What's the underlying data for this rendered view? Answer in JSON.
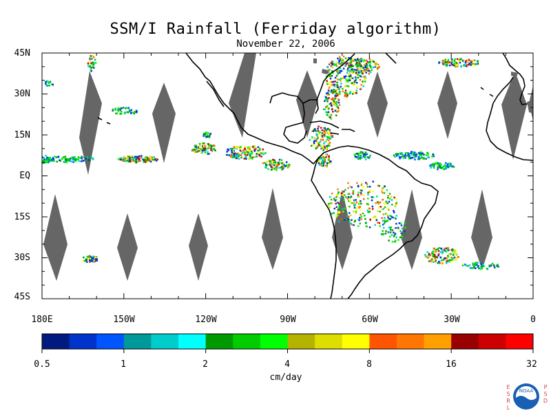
{
  "title": "SSM/I Rainfall (Ferriday algorithm)",
  "date": "November 22, 2006",
  "lat_labels": [
    "45N",
    "30N",
    "15N",
    "EQ",
    "15S",
    "30S",
    "45S"
  ],
  "lon_labels": [
    "180E",
    "150W",
    "120W",
    "90W",
    "60W",
    "30W",
    "0"
  ],
  "colorbar": {
    "tick_labels": [
      "0.5",
      "1",
      "2",
      "4",
      "8",
      "16",
      "32"
    ],
    "unit": "cm/day",
    "colors": [
      "#001a80",
      "#0033cc",
      "#0055ff",
      "#009999",
      "#00cccc",
      "#00ffff",
      "#009900",
      "#00cc00",
      "#00ff00",
      "#b3b300",
      "#dddd00",
      "#ffff00",
      "#ff5500",
      "#ff7700",
      "#ffa000",
      "#990000",
      "#cc0000",
      "#ff0000"
    ]
  },
  "logo": {
    "left_letters": "ESRL",
    "right_letters": "PSD",
    "emblem_text": "NOAA"
  },
  "map": {
    "projection": "equirectangular",
    "lon_range": [
      -180,
      0
    ],
    "lat_range": [
      -45,
      45
    ],
    "missing_data_color": "#666666",
    "coastline_color": "#000000"
  }
}
